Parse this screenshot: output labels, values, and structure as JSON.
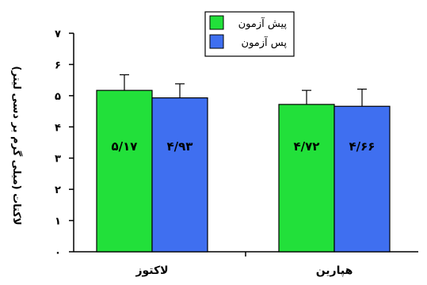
{
  "chart_data": {
    "type": "bar",
    "title": "",
    "xlabel": "",
    "ylabel": "لاکتات (میلی گرم بر دسی لیتر)",
    "categories": [
      "لاکتوز",
      "هپارین"
    ],
    "series": [
      {
        "name": "پیش آزمون",
        "values": [
          5.17,
          4.72
        ],
        "errors": [
          0.5,
          0.45
        ],
        "labels": [
          "۵/۱۷",
          "۴/۷۲"
        ],
        "color": "#22e03a"
      },
      {
        "name": "پس آزمون",
        "values": [
          4.93,
          4.66
        ],
        "errors": [
          0.45,
          0.55
        ],
        "labels": [
          "۴/۹۳",
          "۴/۶۶"
        ],
        "color": "#3f6ff0"
      }
    ],
    "ylim": [
      0,
      7
    ],
    "yticks": [
      0,
      1,
      2,
      3,
      4,
      5,
      6,
      7
    ],
    "ytick_labels": [
      "۰",
      "۱",
      "۲",
      "۳",
      "۴",
      "۵",
      "۶",
      "۷"
    ],
    "grid": false,
    "legend_position": "top-center",
    "error_bars": true
  }
}
